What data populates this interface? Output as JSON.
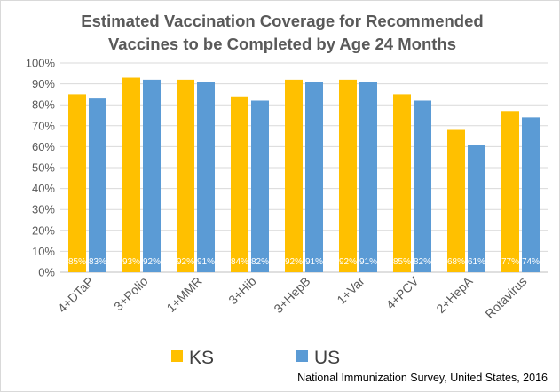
{
  "chart_data": {
    "type": "bar",
    "title_lines": [
      "Estimated Vaccination Coverage for Recommended",
      "Vaccines to be Completed by Age 24 Months"
    ],
    "categories": [
      "4+DTaP",
      "3+Polio",
      "1+MMR",
      "3+Hib",
      "3+HepB",
      "1+Var",
      "4+PCV",
      "2+HepA",
      "Rotavirus"
    ],
    "series": [
      {
        "name": "KS",
        "color": "#ffc000",
        "values": [
          85,
          93,
          92,
          84,
          92,
          92,
          85,
          68,
          77
        ],
        "labels": [
          "85%",
          "93%",
          "92%",
          "84%",
          "92%",
          "92%",
          "85%",
          "68%",
          "77%"
        ]
      },
      {
        "name": "US",
        "color": "#5b9bd5",
        "values": [
          83,
          92,
          91,
          82,
          91,
          91,
          82,
          61,
          74
        ],
        "labels": [
          "83%",
          "92%",
          "91%",
          "82%",
          "91%",
          "91%",
          "82%",
          "61%",
          "74%"
        ]
      }
    ],
    "ylim": [
      0,
      100
    ],
    "yticks": [
      "0%",
      "10%",
      "20%",
      "30%",
      "40%",
      "50%",
      "60%",
      "70%",
      "80%",
      "90%",
      "100%"
    ],
    "grid": true,
    "legend_position": "bottom"
  },
  "source_note": "National Immunization Survey, United States, 2016"
}
